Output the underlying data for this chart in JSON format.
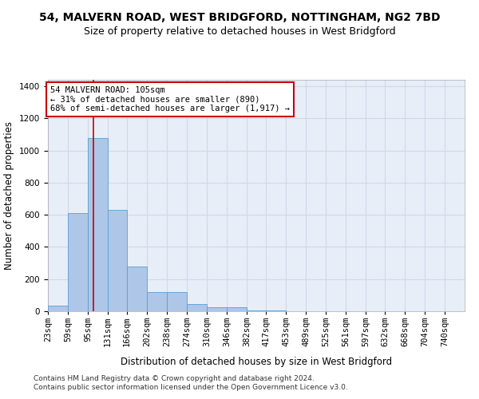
{
  "title_line1": "54, MALVERN ROAD, WEST BRIDGFORD, NOTTINGHAM, NG2 7BD",
  "title_line2": "Size of property relative to detached houses in West Bridgford",
  "xlabel": "Distribution of detached houses by size in West Bridgford",
  "ylabel": "Number of detached properties",
  "bins": [
    23,
    59,
    95,
    131,
    166,
    202,
    238,
    274,
    310,
    346,
    382,
    417,
    453,
    489,
    525,
    561,
    597,
    632,
    668,
    704,
    740
  ],
  "bin_labels": [
    "23sqm",
    "59sqm",
    "95sqm",
    "131sqm",
    "166sqm",
    "202sqm",
    "238sqm",
    "274sqm",
    "310sqm",
    "346sqm",
    "382sqm",
    "417sqm",
    "453sqm",
    "489sqm",
    "525sqm",
    "561sqm",
    "597sqm",
    "632sqm",
    "668sqm",
    "704sqm",
    "740sqm"
  ],
  "counts": [
    35,
    610,
    1080,
    630,
    280,
    120,
    120,
    45,
    25,
    25,
    5,
    5,
    0,
    0,
    0,
    0,
    0,
    0,
    0,
    0
  ],
  "bar_color": "#aec6e8",
  "bar_edge_color": "#5a9fd4",
  "property_size": 105,
  "vline_color": "#cc0000",
  "annotation_text": "54 MALVERN ROAD: 105sqm\n← 31% of detached houses are smaller (890)\n68% of semi-detached houses are larger (1,917) →",
  "annotation_box_color": "#ffffff",
  "annotation_box_edge_color": "#cc0000",
  "ylim": [
    0,
    1440
  ],
  "yticks": [
    0,
    200,
    400,
    600,
    800,
    1000,
    1200,
    1400
  ],
  "grid_color": "#d0d8e8",
  "background_color": "#e8eef8",
  "footer_line1": "Contains HM Land Registry data © Crown copyright and database right 2024.",
  "footer_line2": "Contains public sector information licensed under the Open Government Licence v3.0.",
  "title_fontsize": 10,
  "subtitle_fontsize": 9,
  "axis_label_fontsize": 8.5,
  "tick_fontsize": 7.5,
  "annotation_fontsize": 7.5,
  "footer_fontsize": 6.5
}
